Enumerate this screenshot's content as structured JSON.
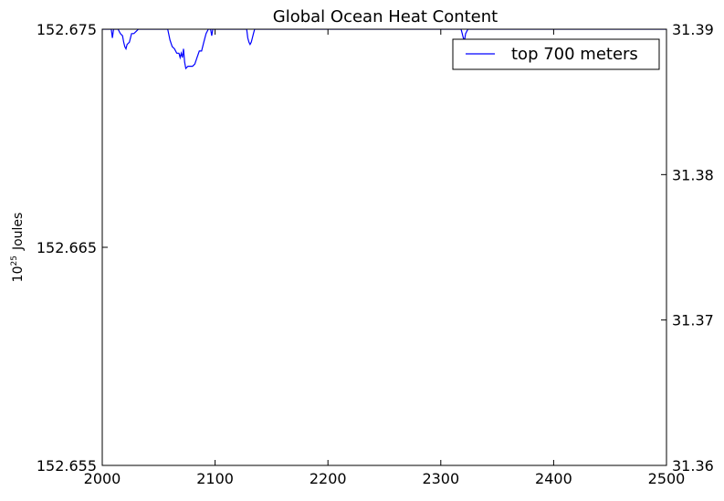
{
  "chart_data": {
    "type": "line",
    "title": "Global Ocean Heat Content",
    "ylabel_base": "10",
    "ylabel_exp": "25",
    "ylabel_unit": "Joules",
    "xlim": [
      2000,
      2500
    ],
    "ylim_left": [
      152.655,
      152.675
    ],
    "ylim_right": [
      31.36,
      31.39
    ],
    "x_ticks": [
      "2000",
      "2100",
      "2200",
      "2300",
      "2400",
      "2500"
    ],
    "left_ticks": [
      "152.655",
      "152.665",
      "152.675"
    ],
    "right_ticks": [
      "31.36",
      "31.37",
      "31.38",
      "31.39"
    ],
    "legend_position": "top-right",
    "series": [
      {
        "name": "top 700 meters",
        "color": "#0000ff",
        "x": [
          2000,
          2004,
          2008,
          2009,
          2010,
          2012,
          2014,
          2016,
          2018,
          2019,
          2020,
          2021,
          2022,
          2024,
          2026,
          2028,
          2030,
          2032,
          2034,
          2040,
          2050,
          2058,
          2060,
          2062,
          2064,
          2066,
          2068,
          2069,
          2070,
          2071,
          2072,
          2073,
          2074,
          2076,
          2078,
          2080,
          2082,
          2084,
          2086,
          2088,
          2090,
          2092,
          2094,
          2096,
          2097,
          2098,
          2100,
          2110,
          2120,
          2128,
          2129,
          2130,
          2131,
          2132,
          2133,
          2134,
          2135,
          2136,
          2150,
          2200,
          2250,
          2300,
          2318,
          2319,
          2320,
          2321,
          2322,
          2324,
          2326,
          2330,
          2350,
          2400,
          2450,
          2500
        ],
        "y": [
          152.675,
          152.675,
          152.675,
          152.6746,
          152.675,
          152.675,
          152.675,
          152.6748,
          152.6747,
          152.6744,
          152.6742,
          152.6741,
          152.6743,
          152.6744,
          152.6748,
          152.6748,
          152.6749,
          152.675,
          152.675,
          152.675,
          152.675,
          152.675,
          152.6745,
          152.6742,
          152.6741,
          152.6739,
          152.6739,
          152.6737,
          152.6739,
          152.6737,
          152.6741,
          152.6735,
          152.6732,
          152.6733,
          152.6733,
          152.6733,
          152.6734,
          152.6737,
          152.674,
          152.674,
          152.6744,
          152.6748,
          152.675,
          152.675,
          152.6747,
          152.675,
          152.675,
          152.675,
          152.675,
          152.675,
          152.6746,
          152.6744,
          152.6743,
          152.6744,
          152.6746,
          152.6748,
          152.675,
          152.675,
          152.675,
          152.675,
          152.675,
          152.675,
          152.675,
          152.6748,
          152.6746,
          152.6745,
          152.6748,
          152.675,
          152.675,
          152.675,
          152.675,
          152.675,
          152.675,
          152.675
        ]
      }
    ]
  }
}
